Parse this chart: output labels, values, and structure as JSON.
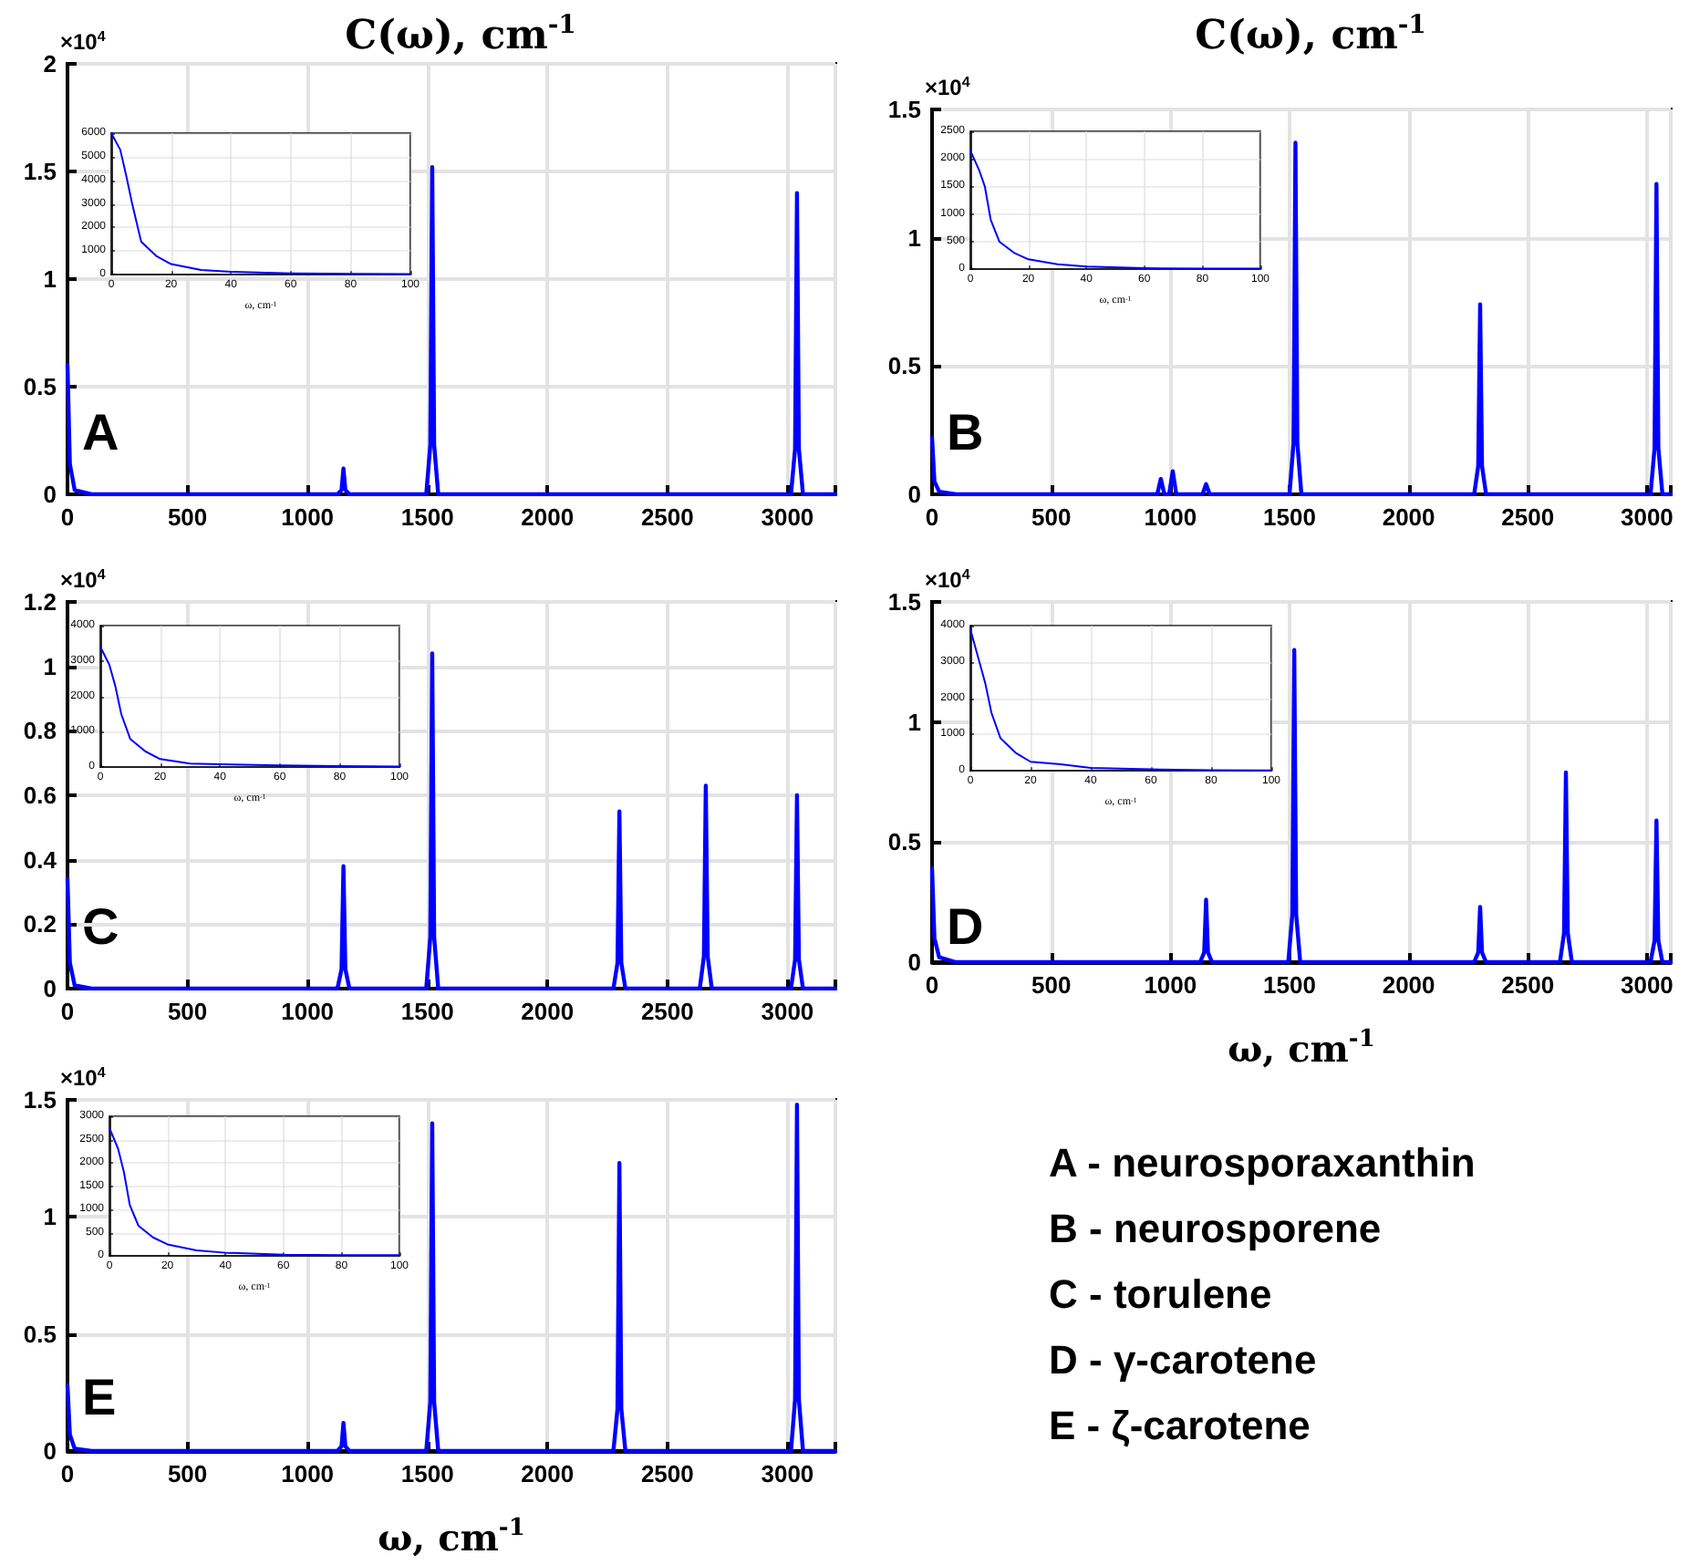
{
  "chart_data": [
    {
      "type": "line",
      "title": "C(ω), cm$^{-1}$",
      "annotations": [
        "×10$^{4}$",
        "A"
      ],
      "xlim": [
        0,
        3200
      ],
      "xticks": [
        0,
        500,
        1000,
        1500,
        2000,
        2500,
        3000
      ],
      "ylim": [
        0,
        2
      ],
      "yticks": [
        0,
        0.5,
        1,
        1.5,
        2
      ],
      "grid": true,
      "x": [
        0,
        10,
        30,
        100,
        1125,
        1142,
        1150,
        1158,
        1175,
        1495,
        1512,
        1520,
        1528,
        1545,
        3015,
        3032,
        3040,
        3048,
        3065,
        3200
      ],
      "series": [
        {
          "color": "#0000ff",
          "values": [
            0.6,
            0.14,
            0.02,
            0,
            0,
            0.02,
            0.12,
            0.02,
            0,
            0,
            0.23,
            1.52,
            0.23,
            0,
            0,
            0.21,
            1.4,
            0.21,
            0,
            0
          ]
        }
      ]
    },
    {
      "type": "line",
      "xlabel": "ω, cm$^{-1}$",
      "xlim": [
        0,
        100
      ],
      "xticks": [
        0,
        20,
        40,
        60,
        80,
        100
      ],
      "ylim": [
        0,
        6000
      ],
      "yticks": [
        0,
        1000,
        2000,
        3000,
        4000,
        5000,
        6000
      ],
      "grid": true,
      "x": [
        0,
        3,
        5,
        7,
        10,
        15,
        20,
        30,
        40,
        60,
        80,
        100
      ],
      "series": [
        {
          "color": "#0000ff",
          "values": [
            6000,
            5300,
            4200,
            3000,
            1400,
            800,
            450,
            200,
            120,
            60,
            40,
            30
          ]
        }
      ]
    },
    {
      "type": "line",
      "title": "C(ω), cm$^{-1}$",
      "annotations": [
        "×10$^{4}$",
        "B"
      ],
      "xlim": [
        0,
        3100
      ],
      "xticks": [
        0,
        500,
        1000,
        1500,
        2000,
        2500,
        3000
      ],
      "ylim": [
        0,
        1.5
      ],
      "yticks": [
        0,
        0.5,
        1,
        1.5
      ],
      "grid": true,
      "x": [
        0,
        10,
        30,
        100,
        945,
        960,
        975,
        995,
        1010,
        1025,
        1135,
        1150,
        1165,
        1500,
        1517,
        1525,
        1533,
        1550,
        2275,
        2292,
        2300,
        2308,
        2325,
        3015,
        3032,
        3040,
        3048,
        3065,
        3100
      ],
      "series": [
        {
          "color": "#0000ff",
          "values": [
            0.22,
            0.05,
            0.01,
            0,
            0,
            0.06,
            0,
            0,
            0.09,
            0,
            0,
            0.04,
            0,
            0,
            0.2,
            1.37,
            0.2,
            0,
            0,
            0.11,
            0.74,
            0.11,
            0,
            0,
            0.18,
            1.21,
            0.18,
            0,
            0
          ]
        }
      ]
    },
    {
      "type": "line",
      "xlabel": "ω, cm$^{-1}$",
      "xlim": [
        0,
        100
      ],
      "xticks": [
        0,
        20,
        40,
        60,
        80,
        100
      ],
      "ylim": [
        0,
        2500
      ],
      "yticks": [
        0,
        500,
        1000,
        1500,
        2000,
        2500
      ],
      "grid": true,
      "x": [
        0,
        3,
        5,
        7,
        10,
        15,
        20,
        30,
        40,
        60,
        80,
        100
      ],
      "series": [
        {
          "color": "#0000ff",
          "values": [
            2150,
            1800,
            1500,
            900,
            500,
            300,
            180,
            90,
            50,
            20,
            10,
            10
          ]
        }
      ]
    },
    {
      "type": "line",
      "annotations": [
        "×10$^{4}$",
        "C"
      ],
      "xlim": [
        0,
        3200
      ],
      "xticks": [
        0,
        500,
        1000,
        1500,
        2000,
        2500,
        3000
      ],
      "ylim": [
        0,
        1.2
      ],
      "yticks": [
        0,
        0.2,
        0.4,
        0.6,
        0.8,
        1,
        1.2
      ],
      "grid": true,
      "x": [
        0,
        10,
        30,
        100,
        1125,
        1142,
        1150,
        1158,
        1175,
        1495,
        1512,
        1520,
        1528,
        1545,
        2275,
        2292,
        2300,
        2308,
        2325,
        2635,
        2652,
        2660,
        2668,
        2685,
        3015,
        3032,
        3040,
        3048,
        3065,
        3200
      ],
      "series": [
        {
          "color": "#0000ff",
          "values": [
            0.34,
            0.08,
            0.01,
            0,
            0,
            0.06,
            0.38,
            0.06,
            0,
            0,
            0.16,
            1.04,
            0.16,
            0,
            0,
            0.08,
            0.55,
            0.08,
            0,
            0,
            0.1,
            0.63,
            0.1,
            0,
            0,
            0.09,
            0.6,
            0.09,
            0,
            0
          ]
        }
      ]
    },
    {
      "type": "line",
      "xlabel": "ω, cm$^{-1}$",
      "xlim": [
        0,
        100
      ],
      "xticks": [
        0,
        20,
        40,
        60,
        80,
        100
      ],
      "ylim": [
        0,
        4000
      ],
      "yticks": [
        0,
        1000,
        2000,
        3000,
        4000
      ],
      "grid": true,
      "x": [
        0,
        3,
        5,
        7,
        10,
        15,
        20,
        30,
        40,
        60,
        80,
        100
      ],
      "series": [
        {
          "color": "#0000ff",
          "values": [
            3400,
            2900,
            2300,
            1500,
            800,
            450,
            230,
            100,
            80,
            50,
            30,
            20
          ]
        }
      ]
    },
    {
      "type": "line",
      "xlabel": "ω, cm$^{-1}$",
      "annotations": [
        "×10$^{4}$",
        "D"
      ],
      "xlim": [
        0,
        3100
      ],
      "xticks": [
        0,
        500,
        1000,
        1500,
        2000,
        2500,
        3000
      ],
      "ylim": [
        0,
        1.5
      ],
      "yticks": [
        0,
        0.5,
        1,
        1.5
      ],
      "grid": true,
      "x": [
        0,
        10,
        30,
        100,
        1125,
        1142,
        1150,
        1158,
        1175,
        1495,
        1512,
        1520,
        1528,
        1545,
        2275,
        2292,
        2300,
        2308,
        2325,
        2635,
        2652,
        2660,
        2668,
        2685,
        3015,
        3032,
        3040,
        3048,
        3065,
        3100
      ],
      "series": [
        {
          "color": "#0000ff",
          "values": [
            0.39,
            0.1,
            0.02,
            0,
            0,
            0.04,
            0.26,
            0.04,
            0,
            0,
            0.2,
            1.3,
            0.2,
            0,
            0,
            0.04,
            0.23,
            0.04,
            0,
            0,
            0.12,
            0.79,
            0.12,
            0,
            0,
            0.09,
            0.59,
            0.09,
            0,
            0
          ]
        }
      ]
    },
    {
      "type": "line",
      "xlabel": "ω, cm$^{-1}$",
      "xlim": [
        0,
        100
      ],
      "xticks": [
        0,
        20,
        40,
        60,
        80,
        100
      ],
      "ylim": [
        0,
        4000
      ],
      "yticks": [
        0,
        1000,
        2000,
        3000,
        4000
      ],
      "grid": true,
      "x": [
        0,
        3,
        5,
        7,
        10,
        15,
        20,
        30,
        40,
        60,
        80,
        100
      ],
      "series": [
        {
          "color": "#0000ff",
          "values": [
            3900,
            3000,
            2400,
            1600,
            900,
            500,
            250,
            180,
            80,
            40,
            20,
            10
          ]
        }
      ]
    },
    {
      "type": "line",
      "xlabel": "ω, cm$^{-1}$",
      "annotations": [
        "×10$^{4}$",
        "E"
      ],
      "xlim": [
        0,
        3200
      ],
      "xticks": [
        0,
        500,
        1000,
        1500,
        2000,
        2500,
        3000
      ],
      "ylim": [
        0,
        1.5
      ],
      "yticks": [
        0,
        0.5,
        1,
        1.5
      ],
      "grid": true,
      "x": [
        0,
        10,
        30,
        100,
        1125,
        1142,
        1150,
        1158,
        1175,
        1495,
        1512,
        1520,
        1528,
        1545,
        2275,
        2292,
        2300,
        2308,
        2325,
        3015,
        3032,
        3040,
        3048,
        3065,
        3200
      ],
      "series": [
        {
          "color": "#0000ff",
          "values": [
            0.28,
            0.07,
            0.01,
            0,
            0,
            0.02,
            0.12,
            0.02,
            0,
            0,
            0.21,
            1.4,
            0.21,
            0,
            0,
            0.18,
            1.23,
            0.18,
            0,
            0,
            0.22,
            1.48,
            0.22,
            0,
            0
          ]
        }
      ]
    },
    {
      "type": "line",
      "xlabel": "ω, cm$^{-1}$",
      "xlim": [
        0,
        100
      ],
      "xticks": [
        0,
        20,
        40,
        60,
        80,
        100
      ],
      "ylim": [
        0,
        3000
      ],
      "yticks": [
        0,
        500,
        1000,
        1500,
        2000,
        2500,
        3000
      ],
      "grid": true,
      "x": [
        0,
        3,
        5,
        7,
        10,
        15,
        20,
        30,
        40,
        60,
        80,
        100
      ],
      "series": [
        {
          "color": "#0000ff",
          "values": [
            2750,
            2300,
            1800,
            1100,
            650,
            400,
            250,
            120,
            70,
            30,
            20,
            20
          ]
        }
      ]
    },
    {
      "type": "other",
      "annotations": [
        "A - neurosporaxanthin",
        "B - neurosporene",
        "C - torulene",
        "D - γ-carotene",
        "E - ζ-carotene"
      ]
    }
  ]
}
